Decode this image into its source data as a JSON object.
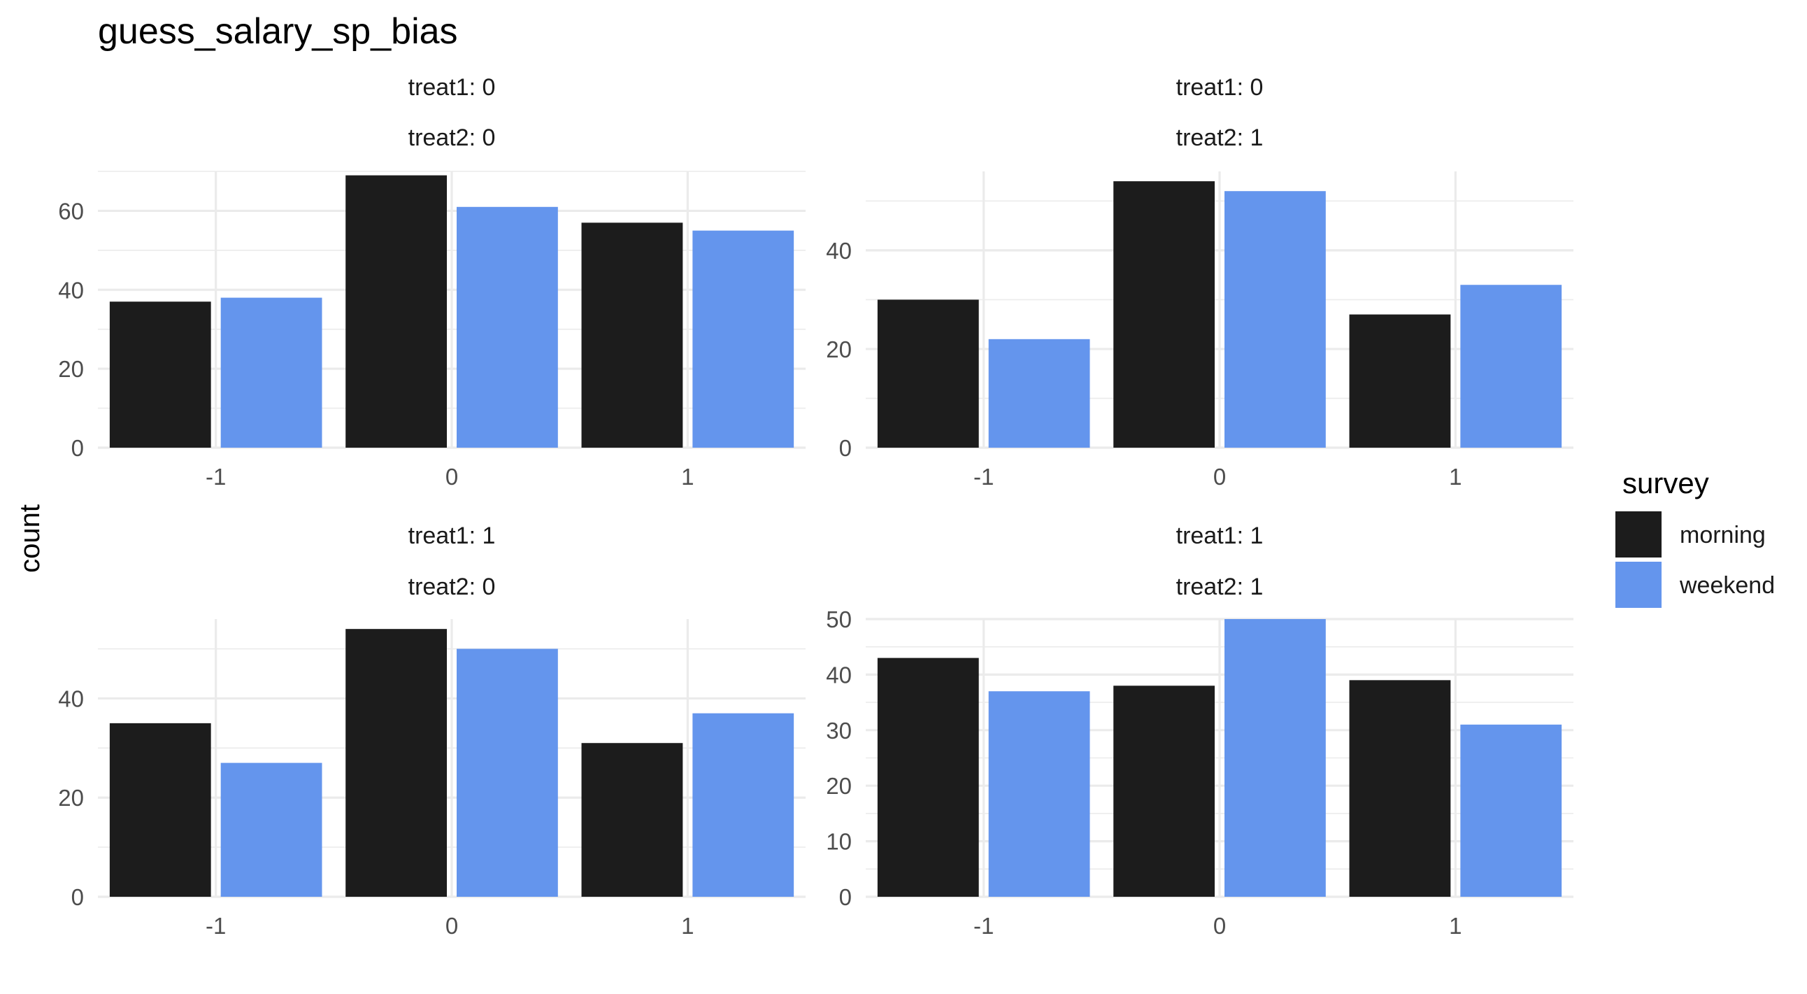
{
  "chart_data": {
    "type": "bar",
    "title": "guess_salary_sp_bias",
    "ylabel": "count",
    "xlabel": "",
    "categories": [
      "-1",
      "0",
      "1"
    ],
    "legend": {
      "title": "survey",
      "position": "right",
      "entries": [
        {
          "name": "morning",
          "color": "#1c1c1c"
        },
        {
          "name": "weekend",
          "color": "#6495ed"
        }
      ]
    },
    "grid": true,
    "panels": [
      {
        "strip1": "treat1: 0",
        "strip2": "treat2: 0",
        "ylim": [
          0,
          70
        ],
        "yticks": [
          "0",
          "20",
          "40",
          "60"
        ],
        "series": [
          {
            "name": "morning",
            "values": [
              37,
              69,
              57
            ]
          },
          {
            "name": "weekend",
            "values": [
              38,
              61,
              55
            ]
          }
        ]
      },
      {
        "strip1": "treat1: 0",
        "strip2": "treat2: 1",
        "ylim": [
          0,
          56
        ],
        "yticks": [
          "0",
          "20",
          "40"
        ],
        "series": [
          {
            "name": "morning",
            "values": [
              30,
              54,
              27
            ]
          },
          {
            "name": "weekend",
            "values": [
              22,
              52,
              33
            ]
          }
        ]
      },
      {
        "strip1": "treat1: 1",
        "strip2": "treat2: 0",
        "ylim": [
          0,
          56
        ],
        "yticks": [
          "0",
          "20",
          "40"
        ],
        "series": [
          {
            "name": "morning",
            "values": [
              35,
              54,
              31
            ]
          },
          {
            "name": "weekend",
            "values": [
              27,
              50,
              37
            ]
          }
        ]
      },
      {
        "strip1": "treat1: 1",
        "strip2": "treat2: 1",
        "ylim": [
          0,
          50
        ],
        "yticks": [
          "0",
          "10",
          "20",
          "30",
          "40",
          "50"
        ],
        "series": [
          {
            "name": "morning",
            "values": [
              43,
              38,
              39
            ]
          },
          {
            "name": "weekend",
            "values": [
              37,
              50,
              31
            ]
          }
        ]
      }
    ]
  }
}
